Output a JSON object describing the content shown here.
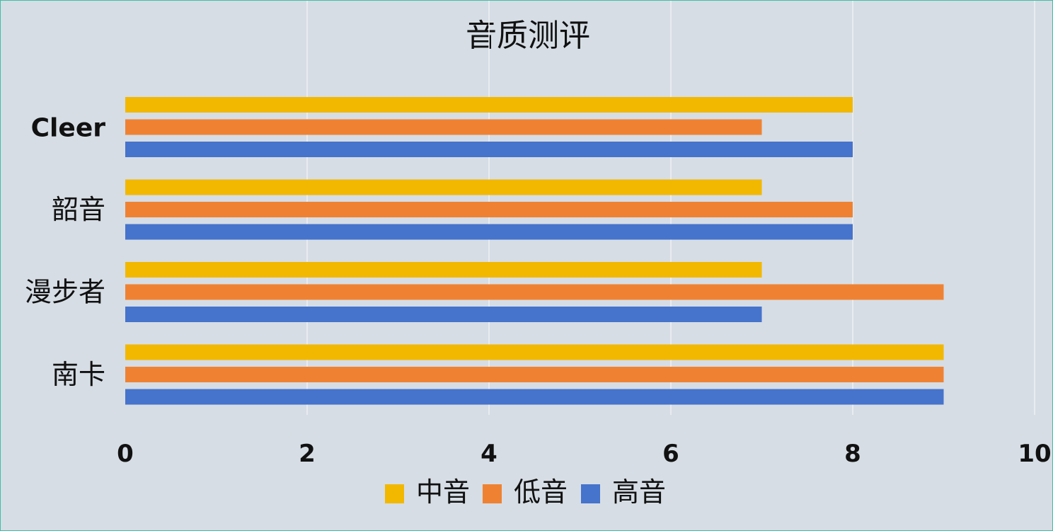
{
  "chart_data": {
    "type": "bar",
    "orientation": "horizontal",
    "title": "音质测评",
    "categories": [
      "Cleer",
      "韶音",
      "漫步者",
      "南卡"
    ],
    "series": [
      {
        "name": "中音",
        "color": "#f2b800",
        "values": [
          8,
          7,
          7,
          9
        ]
      },
      {
        "name": "低音",
        "color": "#ef8232",
        "values": [
          7,
          8,
          9,
          9
        ]
      },
      {
        "name": "高音",
        "color": "#4673cb",
        "values": [
          8,
          8,
          7,
          9
        ]
      }
    ],
    "xlim": [
      0,
      10
    ],
    "xticks": [
      "0",
      "2",
      "4",
      "6",
      "8",
      "10"
    ],
    "grid": true,
    "legend": "bottom"
  }
}
